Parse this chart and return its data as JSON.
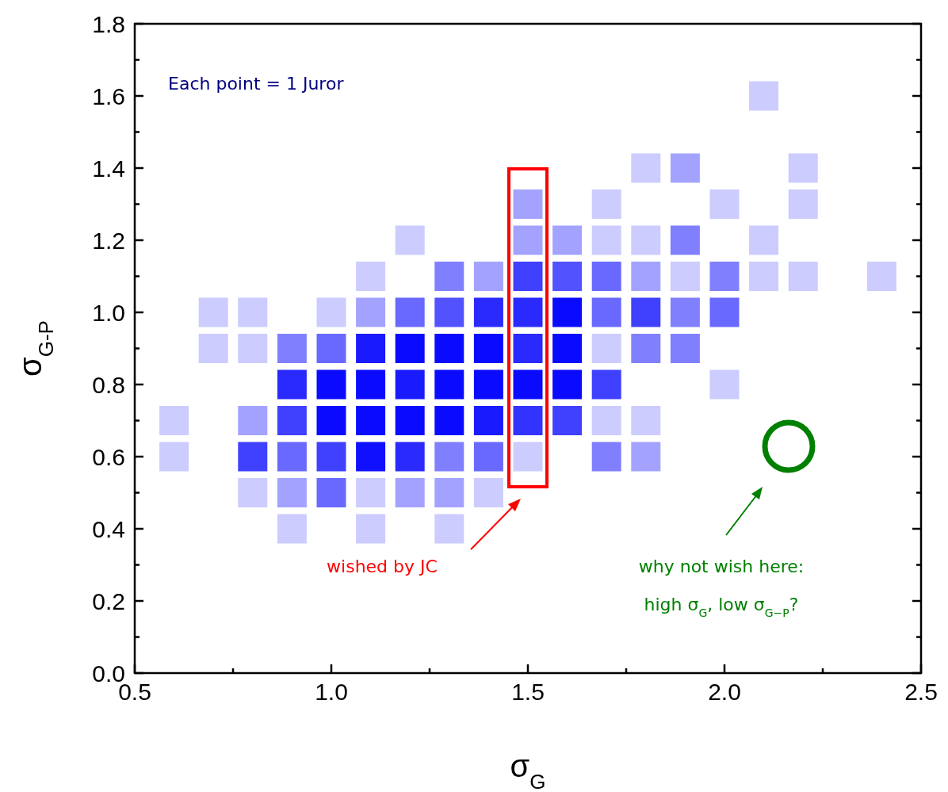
{
  "chart_data": {
    "type": "scatter",
    "marker": "square",
    "xlabel": "σ$_{G}$",
    "ylabel": "σ$_{G-P}$",
    "xlim": [
      0.5,
      2.5
    ],
    "ylim": [
      0,
      1.8
    ],
    "xticks": [
      {
        "value": 0.5,
        "label": "0.5"
      },
      {
        "value": 0.75,
        "label": null
      },
      {
        "value": 1,
        "label": "1.0"
      },
      {
        "value": 1.25,
        "label": null
      },
      {
        "value": 1.5,
        "label": "1.5"
      },
      {
        "value": 1.75,
        "label": null
      },
      {
        "value": 2,
        "label": "2.0"
      },
      {
        "value": 2.25,
        "label": null
      },
      {
        "value": 2.5,
        "label": "2.5"
      }
    ],
    "yticks": [
      {
        "value": 0,
        "label": "0.0"
      },
      {
        "value": 0.1,
        "label": null
      },
      {
        "value": 0.2,
        "label": "0.2"
      },
      {
        "value": 0.3,
        "label": null
      },
      {
        "value": 0.4,
        "label": "0.4"
      },
      {
        "value": 0.5,
        "label": null
      },
      {
        "value": 0.6,
        "label": "0.6"
      },
      {
        "value": 0.7,
        "label": null
      },
      {
        "value": 0.8,
        "label": "0.8"
      },
      {
        "value": 0.9,
        "label": null
      },
      {
        "value": 1,
        "label": "1.0"
      },
      {
        "value": 1.1,
        "label": null
      },
      {
        "value": 1.2,
        "label": "1.2"
      },
      {
        "value": 1.3,
        "label": null
      },
      {
        "value": 1.4,
        "label": "1.4"
      },
      {
        "value": 1.5,
        "label": null
      },
      {
        "value": 1.6,
        "label": "1.6"
      },
      {
        "value": 1.7,
        "label": null
      },
      {
        "value": 1.8,
        "label": "1.8"
      }
    ],
    "annotations": [
      "Each point = 1 Juror",
      "wished by JC",
      "why not wish here:",
      "high σ$_{G}$, low σ$_{G−P}$?"
    ],
    "x": [
      0.6,
      0.6,
      0.7,
      0.7,
      0.8,
      0.8,
      0.8,
      0.8,
      0.8,
      0.9,
      0.9,
      0.9,
      0.9,
      0.9,
      0.9,
      1.0,
      1.0,
      1.0,
      1.0,
      1.0,
      1.0,
      1.1,
      1.1,
      1.1,
      1.1,
      1.1,
      1.1,
      1.1,
      1.1,
      1.2,
      1.2,
      1.2,
      1.2,
      1.2,
      1.2,
      1.2,
      1.3,
      1.3,
      1.3,
      1.3,
      1.3,
      1.3,
      1.3,
      1.3,
      1.4,
      1.4,
      1.4,
      1.4,
      1.4,
      1.4,
      1.4,
      1.5,
      1.5,
      1.5,
      1.5,
      1.5,
      1.5,
      1.5,
      1.5,
      1.6,
      1.6,
      1.6,
      1.6,
      1.6,
      1.6,
      1.7,
      1.7,
      1.7,
      1.7,
      1.7,
      1.7,
      1.7,
      1.7,
      1.8,
      1.8,
      1.8,
      1.8,
      1.8,
      1.8,
      1.8,
      1.9,
      1.9,
      1.9,
      1.9,
      1.9,
      2.0,
      2.0,
      2.0,
      2.0,
      2.1,
      2.1,
      2.1,
      2.2,
      2.2,
      2.2,
      2.4
    ],
    "values": [
      0.7,
      0.6,
      1.0,
      0.9,
      1.0,
      0.9,
      0.7,
      0.6,
      0.5,
      0.9,
      0.8,
      0.7,
      0.6,
      0.5,
      0.4,
      1.0,
      0.9,
      0.8,
      0.7,
      0.6,
      0.5,
      1.1,
      1.0,
      0.9,
      0.8,
      0.7,
      0.6,
      0.5,
      0.4,
      1.2,
      1.0,
      0.9,
      0.8,
      0.7,
      0.6,
      0.5,
      1.1,
      1.0,
      0.9,
      0.8,
      0.7,
      0.6,
      0.5,
      0.4,
      1.1,
      1.0,
      0.9,
      0.8,
      0.7,
      0.6,
      0.5,
      1.3,
      1.2,
      1.1,
      1.0,
      0.9,
      0.8,
      0.7,
      0.6,
      1.2,
      1.1,
      1.0,
      0.9,
      0.8,
      0.7,
      1.3,
      1.2,
      1.1,
      1.0,
      0.9,
      0.8,
      0.7,
      0.6,
      1.4,
      1.2,
      1.1,
      1.0,
      0.9,
      0.7,
      0.6,
      1.4,
      1.2,
      1.1,
      1.0,
      0.9,
      1.3,
      1.1,
      1.0,
      0.8,
      1.6,
      1.2,
      1.1,
      1.4,
      1.3,
      1.1,
      1.1
    ],
    "colors": [
      "#ccccff",
      "#ccccff",
      "#ccccff",
      "#ccccff",
      "#ccccff",
      "#ccccff",
      "#a3a3ff",
      "#4040ff",
      "#ccccff",
      "#8080ff",
      "#2a2aff",
      "#4040ff",
      "#6969ff",
      "#a3a3ff",
      "#ccccff",
      "#ccccff",
      "#6969ff",
      "#0a0aff",
      "#0a0aff",
      "#4040ff",
      "#6969ff",
      "#ccccff",
      "#a3a3ff",
      "#1a1aff",
      "#0a0aff",
      "#0a0aff",
      "#1010ff",
      "#ccccff",
      "#ccccff",
      "#ccccff",
      "#6969ff",
      "#0a0aff",
      "#1a1aff",
      "#0a0aff",
      "#2a2aff",
      "#a3a3ff",
      "#8080ff",
      "#5252ff",
      "#0a0aff",
      "#0a0aff",
      "#0a0aff",
      "#8080ff",
      "#a3a3ff",
      "#ccccff",
      "#a3a3ff",
      "#2a2aff",
      "#0a0aff",
      "#0a0aff",
      "#1a1aff",
      "#6969ff",
      "#ccccff",
      "#a3a3ff",
      "#a3a3ff",
      "#4040ff",
      "#2a2aff",
      "#2a2aff",
      "#0a0aff",
      "#3333ff",
      "#ccccff",
      "#a3a3ff",
      "#5252ff",
      "#0a0aff",
      "#0a0aff",
      "#0a0aff",
      "#4040ff",
      "#ccccff",
      "#ccccff",
      "#6969ff",
      "#6969ff",
      "#ccccff",
      "#4040ff",
      "#ccccff",
      "#8080ff",
      "#ccccff",
      "#ccccff",
      "#a3a3ff",
      "#4040ff",
      "#8080ff",
      "#ccccff",
      "#a3a3ff",
      "#a3a3ff",
      "#8080ff",
      "#ccccff",
      "#8080ff",
      "#8080ff",
      "#ccccff",
      "#8080ff",
      "#6969ff",
      "#ccccff",
      "#ccccff",
      "#ccccff",
      "#ccccff",
      "#ccccff",
      "#ccccff",
      "#ccccff",
      "#ccccff"
    ]
  }
}
